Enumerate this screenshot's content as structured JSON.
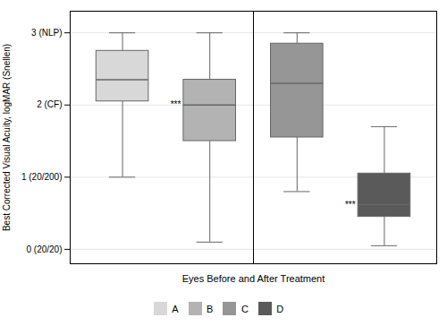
{
  "chart_data": {
    "type": "box",
    "xlabel": "Eyes Before and After Treatment",
    "ylabel": "Best Corrected Visual Acuity, logMAR (Snellen)",
    "categories": [
      "A",
      "B",
      "C",
      "D"
    ],
    "values": [
      {
        "whisker_low": 1.0,
        "q1": 2.05,
        "median": 2.35,
        "q3": 2.75,
        "whisker_high": 3.0
      },
      {
        "whisker_low": 0.1,
        "q1": 1.5,
        "median": 2.0,
        "q3": 2.35,
        "whisker_high": 3.0
      },
      {
        "whisker_low": 0.8,
        "q1": 1.55,
        "median": 2.3,
        "q3": 2.85,
        "whisker_high": 3.0
      },
      {
        "whisker_low": 0.05,
        "q1": 0.45,
        "median": 0.62,
        "q3": 1.05,
        "whisker_high": 1.7
      }
    ],
    "colors": [
      "#d8d8d8",
      "#b3b3b3",
      "#969696",
      "#5a5a5a"
    ],
    "color": "#666666",
    "ylim": [
      -0.2,
      3.3
    ],
    "yticks": [
      {
        "value": 0,
        "label": "0 (20/20)"
      },
      {
        "value": 1,
        "label": "1 (20/200)"
      },
      {
        "value": 2,
        "label": "2 (CF)"
      },
      {
        "value": 3,
        "label": "3 (NLP)"
      }
    ],
    "grid": true,
    "legend": "bottom",
    "tick_labels": "y",
    "annotations": [
      {
        "category": "B",
        "text": "***"
      },
      {
        "category": "D",
        "text": "***"
      }
    ]
  }
}
